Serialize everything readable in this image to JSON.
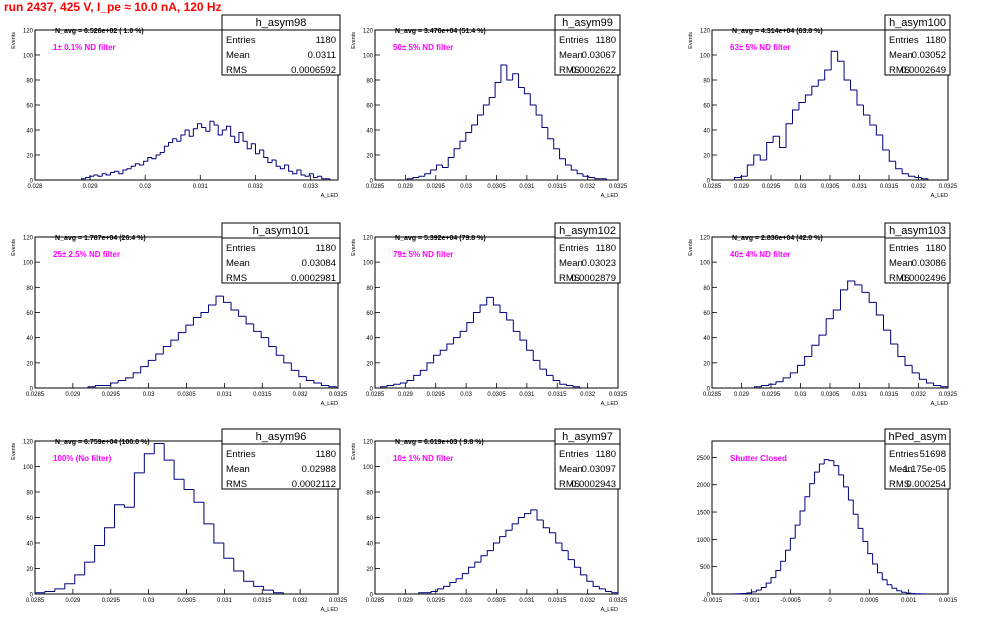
{
  "page_title": "run 2437,   425 V, I_pe ≈ 10.0 nA, 120 Hz",
  "labels": {
    "entries": "Entries",
    "mean": "Mean",
    "rms": "RMS"
  },
  "colors": {
    "histogram": "#000080",
    "title": "#ff0000",
    "annotation": "#ff00ff",
    "text": "#000000"
  },
  "chart_data": [
    {
      "type": "bar",
      "name": "h_asym98",
      "navg": "N_avg = 6.526e+02 ( 1.0 %)",
      "filter": "1± 0.1% ND filter",
      "stats": {
        "entries": "1180",
        "mean": "0.0311",
        "rms": "0.0006592"
      },
      "xlabel": "A_LED",
      "ylabel": "Events",
      "xlim": [
        0.028,
        0.0335
      ],
      "ylim": [
        0,
        120
      ],
      "xticks": [
        "0.028",
        "0.029",
        "0.03",
        "0.031",
        "0.032",
        "0.033"
      ],
      "yticks": [
        "0",
        "20",
        "40",
        "60",
        "80",
        "100",
        "120"
      ],
      "values": [
        1,
        2,
        3,
        4,
        3,
        5,
        4,
        6,
        7,
        5,
        8,
        9,
        11,
        13,
        12,
        15,
        18,
        17,
        20,
        22,
        27,
        30,
        33,
        31,
        36,
        40,
        35,
        41,
        45,
        42,
        39,
        47,
        44,
        36,
        40,
        43,
        35,
        30,
        38,
        31,
        25,
        29,
        21,
        24,
        18,
        14,
        16,
        11,
        9,
        12,
        7,
        5,
        8,
        4,
        3,
        5,
        2,
        3,
        1,
        1
      ]
    },
    {
      "type": "bar",
      "name": "h_asym99",
      "navg": "N_avg = 3.476e+04 (51.4 %)",
      "filter": "50± 5% ND filter",
      "stats": {
        "entries": "1180",
        "mean": "0.03067",
        "rms": "0.0002622"
      },
      "xlabel": "A_LED",
      "ylabel": "Events",
      "xlim": [
        0.0285,
        0.0325
      ],
      "ylim": [
        0,
        120
      ],
      "xticks": [
        "0.0285",
        "0.029",
        "0.0295",
        "0.03",
        "0.0305",
        "0.031",
        "0.0315",
        "0.032",
        "0.0325"
      ],
      "yticks": [
        "0",
        "20",
        "40",
        "60",
        "80",
        "100",
        "120"
      ],
      "values": [
        1,
        2,
        3,
        5,
        8,
        12,
        10,
        18,
        25,
        31,
        38,
        44,
        52,
        60,
        66,
        78,
        92,
        80,
        85,
        74,
        69,
        60,
        52,
        42,
        33,
        25,
        17,
        12,
        8,
        5,
        3,
        2,
        1,
        1
      ]
    },
    {
      "type": "bar",
      "name": "h_asym100",
      "navg": "N_avg = 4.314e+04 (63.8 %)",
      "filter": "63± 5% ND filter",
      "stats": {
        "entries": "1180",
        "mean": "0.03052",
        "rms": "0.0002649"
      },
      "xlabel": "A_LED",
      "ylabel": "Events",
      "xlim": [
        0.0285,
        0.0325
      ],
      "ylim": [
        0,
        120
      ],
      "xticks": [
        "0.0285",
        "0.029",
        "0.0295",
        "0.03",
        "0.0305",
        "0.031",
        "0.0315",
        "0.032",
        "0.0325"
      ],
      "yticks": [
        "0",
        "20",
        "40",
        "60",
        "80",
        "100",
        "120"
      ],
      "values": [
        2,
        3,
        12,
        20,
        16,
        30,
        35,
        26,
        45,
        56,
        62,
        68,
        75,
        80,
        88,
        103,
        95,
        80,
        72,
        60,
        52,
        44,
        36,
        24,
        15,
        9,
        5,
        3,
        2,
        1
      ]
    },
    {
      "type": "bar",
      "name": "h_asym101",
      "navg": "N_avg = 1.787e+04 (26.4 %)",
      "filter": "25± 2.5% ND filter",
      "stats": {
        "entries": "1180",
        "mean": "0.03084",
        "rms": "0.0002981"
      },
      "xlabel": "A_LED",
      "ylabel": "Events",
      "xlim": [
        0.0285,
        0.0325
      ],
      "ylim": [
        0,
        120
      ],
      "xticks": [
        "0.0285",
        "0.029",
        "0.0295",
        "0.03",
        "0.0305",
        "0.031",
        "0.0315",
        "0.032",
        "0.0325"
      ],
      "yticks": [
        "0",
        "20",
        "40",
        "60",
        "80",
        "100",
        "120"
      ],
      "values": [
        1,
        2,
        2,
        4,
        6,
        8,
        12,
        17,
        22,
        27,
        33,
        38,
        44,
        50,
        56,
        60,
        66,
        73,
        68,
        62,
        57,
        51,
        45,
        40,
        33,
        26,
        20,
        14,
        9,
        6,
        4,
        2,
        1
      ]
    },
    {
      "type": "bar",
      "name": "h_asym102",
      "navg": "N_avg = 5.392e+04 (79.8 %)",
      "filter": "79± 5% ND filter",
      "stats": {
        "entries": "1180",
        "mean": "0.03023",
        "rms": "0.0002879"
      },
      "xlabel": "A_LED",
      "ylabel": "Events",
      "xlim": [
        0.0285,
        0.0325
      ],
      "ylim": [
        0,
        120
      ],
      "xticks": [
        "0.0285",
        "0.029",
        "0.0295",
        "0.03",
        "0.0305",
        "0.031",
        "0.0315",
        "0.032",
        "0.0325"
      ],
      "yticks": [
        "0",
        "20",
        "40",
        "60",
        "80",
        "100",
        "120"
      ],
      "values": [
        1,
        2,
        3,
        4,
        6,
        10,
        14,
        20,
        26,
        30,
        35,
        40,
        45,
        52,
        60,
        66,
        72,
        66,
        60,
        54,
        45,
        38,
        30,
        22,
        15,
        10,
        6,
        3,
        2,
        1
      ]
    },
    {
      "type": "bar",
      "name": "h_asym103",
      "navg": "N_avg = 2.836e+04 (42.0 %)",
      "filter": "40± 4% ND filter",
      "stats": {
        "entries": "1180",
        "mean": "0.03086",
        "rms": "0.0002496"
      },
      "xlabel": "A_LED",
      "ylabel": "Events",
      "xlim": [
        0.0285,
        0.0325
      ],
      "ylim": [
        0,
        120
      ],
      "xticks": [
        "0.0285",
        "0.029",
        "0.0295",
        "0.03",
        "0.0305",
        "0.031",
        "0.0315",
        "0.032",
        "0.0325"
      ],
      "yticks": [
        "0",
        "20",
        "40",
        "60",
        "80",
        "100",
        "120"
      ],
      "values": [
        1,
        2,
        3,
        5,
        8,
        12,
        18,
        25,
        34,
        42,
        55,
        62,
        78,
        85,
        82,
        76,
        68,
        58,
        46,
        35,
        25,
        18,
        12,
        7,
        4,
        2,
        1
      ]
    },
    {
      "type": "bar",
      "name": "h_asym96",
      "navg": "N_avg = 6.759e+04 (100.0 %)",
      "filter": "100% (No filter)",
      "stats": {
        "entries": "1180",
        "mean": "0.02988",
        "rms": "0.0002112"
      },
      "xlabel": "A_LED",
      "ylabel": "Events",
      "xlim": [
        0.0285,
        0.0325
      ],
      "ylim": [
        0,
        120
      ],
      "xticks": [
        "0.0285",
        "0.029",
        "0.0295",
        "0.03",
        "0.0305",
        "0.031",
        "0.0315",
        "0.032",
        "0.0325"
      ],
      "yticks": [
        "0",
        "20",
        "40",
        "60",
        "80",
        "100",
        "120"
      ],
      "values": [
        1,
        2,
        4,
        8,
        15,
        25,
        38,
        52,
        70,
        68,
        95,
        110,
        118,
        105,
        90,
        82,
        72,
        55,
        40,
        28,
        18,
        10,
        6,
        3,
        1
      ]
    },
    {
      "type": "bar",
      "name": "h_asym97",
      "navg": "N_avg = 6.619e+03 ( 9.8 %)",
      "filter": "10± 1% ND filter",
      "stats": {
        "entries": "1180",
        "mean": "0.03097",
        "rms": "0.0002943"
      },
      "xlabel": "A_LED",
      "ylabel": "Events",
      "xlim": [
        0.0285,
        0.0325
      ],
      "ylim": [
        0,
        120
      ],
      "xticks": [
        "0.0285",
        "0.029",
        "0.0295",
        "0.03",
        "0.0305",
        "0.031",
        "0.0315",
        "0.032",
        "0.0325"
      ],
      "yticks": [
        "0",
        "20",
        "40",
        "60",
        "80",
        "100",
        "120"
      ],
      "values": [
        1,
        1,
        2,
        4,
        6,
        9,
        12,
        16,
        21,
        25,
        30,
        34,
        40,
        45,
        50,
        55,
        60,
        63,
        66,
        58,
        52,
        48,
        40,
        34,
        27,
        21,
        15,
        10,
        6,
        4,
        2,
        1
      ]
    },
    {
      "type": "bar",
      "name": "hPed_asym",
      "navg": "",
      "filter": "Shutter Closed",
      "stats": {
        "entries": "51698",
        "mean": "-1.175e-05",
        "rms": "0.000254"
      },
      "xlabel": "",
      "ylabel": "",
      "xlim": [
        -0.0015,
        0.0015
      ],
      "ylim": [
        0,
        2800
      ],
      "xticks": [
        "-0.0015",
        "-0.001",
        "-0.0005",
        "0",
        "0.0005",
        "0.001",
        "0.0015"
      ],
      "yticks": [
        "0",
        "500",
        "1000",
        "1500",
        "2000",
        "2500"
      ],
      "values": [
        2,
        5,
        10,
        20,
        40,
        70,
        120,
        200,
        300,
        430,
        600,
        800,
        1020,
        1260,
        1520,
        1780,
        2020,
        2230,
        2380,
        2460,
        2440,
        2350,
        2180,
        1960,
        1720,
        1460,
        1200,
        960,
        740,
        550,
        390,
        260,
        170,
        105,
        60,
        32,
        16,
        8,
        4,
        2
      ]
    }
  ]
}
